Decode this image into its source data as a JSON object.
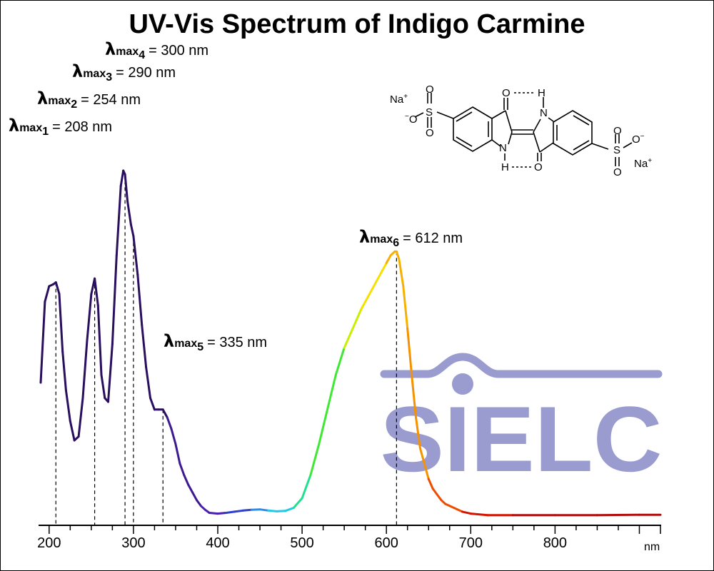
{
  "chart_data": {
    "type": "line",
    "title": "UV-Vis Spectrum of Indigo Carmine",
    "xlabel": "nm",
    "ylabel": "",
    "xlim": [
      190,
      925
    ],
    "ylim": [
      0,
      1
    ],
    "x_ticks": [
      200,
      300,
      400,
      500,
      600,
      700,
      800
    ],
    "grid": false,
    "series": [
      {
        "name": "",
        "x": [
          190,
          195,
          200,
          205,
          208,
          212,
          216,
          220,
          225,
          230,
          235,
          240,
          245,
          250,
          254,
          258,
          262,
          266,
          270,
          275,
          280,
          285,
          288,
          290,
          293,
          297,
          300,
          305,
          310,
          315,
          320,
          325,
          330,
          335,
          340,
          345,
          350,
          355,
          360,
          365,
          370,
          375,
          380,
          385,
          390,
          400,
          410,
          420,
          430,
          440,
          450,
          460,
          470,
          480,
          490,
          500,
          510,
          520,
          530,
          540,
          550,
          560,
          570,
          580,
          590,
          600,
          605,
          610,
          612,
          615,
          620,
          625,
          630,
          635,
          640,
          645,
          650,
          655,
          660,
          665,
          670,
          675,
          680,
          690,
          700,
          720,
          750,
          800,
          850,
          900,
          925
        ],
        "y": [
          0.35,
          0.56,
          0.6,
          0.605,
          0.61,
          0.58,
          0.43,
          0.33,
          0.25,
          0.2,
          0.21,
          0.31,
          0.46,
          0.58,
          0.62,
          0.55,
          0.37,
          0.31,
          0.3,
          0.45,
          0.68,
          0.86,
          0.9,
          0.89,
          0.82,
          0.76,
          0.73,
          0.63,
          0.5,
          0.39,
          0.31,
          0.28,
          0.28,
          0.28,
          0.26,
          0.23,
          0.19,
          0.14,
          0.11,
          0.085,
          0.065,
          0.045,
          0.03,
          0.02,
          0.012,
          0.01,
          0.012,
          0.015,
          0.018,
          0.02,
          0.021,
          0.018,
          0.016,
          0.017,
          0.025,
          0.05,
          0.11,
          0.19,
          0.28,
          0.37,
          0.44,
          0.49,
          0.54,
          0.58,
          0.62,
          0.66,
          0.68,
          0.69,
          0.69,
          0.67,
          0.6,
          0.49,
          0.37,
          0.26,
          0.18,
          0.14,
          0.1,
          0.075,
          0.06,
          0.045,
          0.035,
          0.03,
          0.025,
          0.015,
          0.01,
          0.006,
          0.006,
          0.006,
          0.006,
          0.007,
          0.007
        ]
      }
    ],
    "peaks": [
      {
        "sub": "1",
        "x": 208,
        "text": "= 208 nm"
      },
      {
        "sub": "2",
        "x": 254,
        "text": "= 254 nm"
      },
      {
        "sub": "3",
        "x": 290,
        "text": "= 290 nm"
      },
      {
        "sub": "4",
        "x": 300,
        "text": "= 300 nm"
      },
      {
        "sub": "5",
        "x": 335,
        "text": "= 335 nm"
      },
      {
        "sub": "6",
        "x": 612,
        "text": "= 612 nm"
      }
    ],
    "annotation_symbol": "λ",
    "annotation_subscript_prefix": "max",
    "line_colors": [
      {
        "x": 190,
        "color": "#2a0f5e"
      },
      {
        "x": 340,
        "color": "#3d1a8f"
      },
      {
        "x": 380,
        "color": "#4a1fb0"
      },
      {
        "x": 410,
        "color": "#2f3fd0"
      },
      {
        "x": 440,
        "color": "#2c8ae8"
      },
      {
        "x": 465,
        "color": "#22c8e8"
      },
      {
        "x": 490,
        "color": "#22e090"
      },
      {
        "x": 510,
        "color": "#3ee833"
      },
      {
        "x": 550,
        "color": "#c8f000"
      },
      {
        "x": 575,
        "color": "#f6e000"
      },
      {
        "x": 600,
        "color": "#f8b000"
      },
      {
        "x": 625,
        "color": "#f59200"
      },
      {
        "x": 650,
        "color": "#f04c00"
      },
      {
        "x": 690,
        "color": "#d41400"
      },
      {
        "x": 760,
        "color": "#b00a0a"
      },
      {
        "x": 925,
        "color": "#5a0a0a"
      }
    ]
  },
  "logo": {
    "text": "SIELC",
    "color": "#9a9ccf"
  },
  "structure": {
    "na_top": "Na",
    "na_bottom": "Na",
    "charge_plus": "+",
    "charge_minus": "−",
    "sulfur": "S",
    "oxygen": "O",
    "nitrogen": "N",
    "hydrogen": "H"
  }
}
